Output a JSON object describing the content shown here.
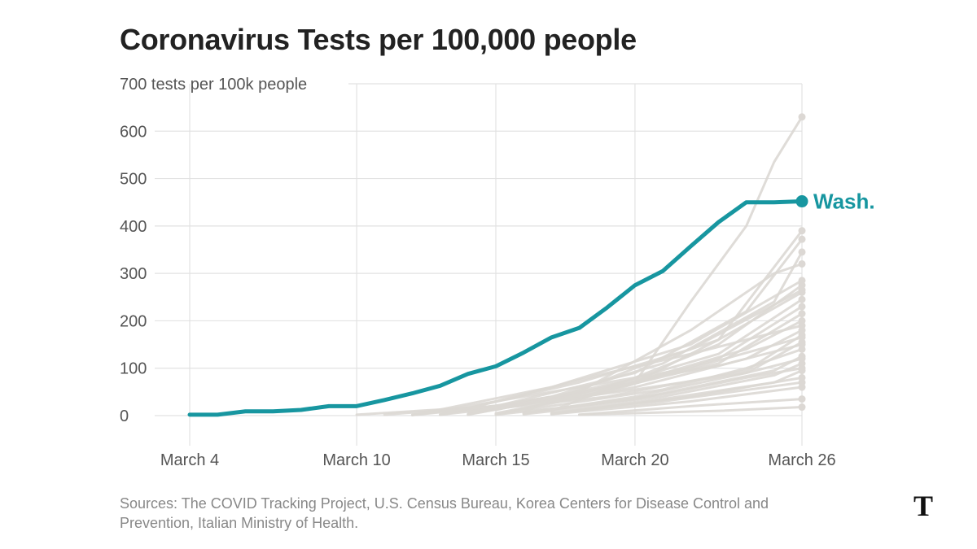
{
  "chart_data": {
    "type": "line",
    "title": "Coronavirus Tests per 100,000 people",
    "ylabel": "tests per 100k people",
    "ytick_labels": [
      "700 tests per 100k people",
      "600",
      "500",
      "400",
      "300",
      "200",
      "100",
      "0"
    ],
    "ylim": [
      0,
      700
    ],
    "x_day_range": [
      4,
      26
    ],
    "xtick_labels": [
      "March 4",
      "March 10",
      "March 15",
      "March 20",
      "March 26"
    ],
    "xticks": [
      4,
      10,
      15,
      20,
      26
    ],
    "grid": true,
    "highlight": {
      "name": "Wash.",
      "color": "#1796a0",
      "x": [
        4,
        5,
        6,
        7,
        8,
        9,
        10,
        11,
        12,
        13,
        14,
        15,
        16,
        17,
        18,
        19,
        20,
        21,
        22,
        23,
        24,
        25,
        26
      ],
      "values": [
        2,
        2,
        9,
        9,
        12,
        20,
        20,
        33,
        47,
        63,
        88,
        104,
        133,
        165,
        185,
        228,
        275,
        305,
        357,
        408,
        450,
        450,
        452
      ]
    },
    "background_series_color": "#dcd8d4",
    "background_series": [
      {
        "x": [
          10,
          15,
          20,
          22,
          24,
          25,
          26
        ],
        "values": [
          2,
          20,
          70,
          240,
          400,
          535,
          630
        ]
      },
      {
        "x": [
          12,
          16,
          20,
          23,
          26
        ],
        "values": [
          1,
          25,
          70,
          160,
          390
        ]
      },
      {
        "x": [
          11,
          15,
          20,
          24,
          26
        ],
        "values": [
          2,
          20,
          90,
          220,
          372
        ]
      },
      {
        "x": [
          13,
          17,
          21,
          25,
          26
        ],
        "values": [
          2,
          40,
          110,
          240,
          345
        ]
      },
      {
        "x": [
          14,
          18,
          22,
          25,
          26
        ],
        "values": [
          3,
          50,
          180,
          300,
          320
        ]
      },
      {
        "x": [
          12,
          17,
          22,
          26
        ],
        "values": [
          1,
          60,
          150,
          285
        ]
      },
      {
        "x": [
          13,
          18,
          22,
          26
        ],
        "values": [
          2,
          70,
          140,
          265
        ]
      },
      {
        "x": [
          14,
          18,
          23,
          26
        ],
        "values": [
          3,
          45,
          130,
          245
        ]
      },
      {
        "x": [
          15,
          19,
          23,
          26
        ],
        "values": [
          5,
          50,
          120,
          230
        ]
      },
      {
        "x": [
          12,
          18,
          23,
          26
        ],
        "values": [
          2,
          40,
          110,
          215
        ]
      },
      {
        "x": [
          14,
          19,
          24,
          26
        ],
        "values": [
          2,
          55,
          140,
          200
        ]
      },
      {
        "x": [
          15,
          20,
          24,
          26
        ],
        "values": [
          3,
          60,
          120,
          180
        ]
      },
      {
        "x": [
          13,
          19,
          24,
          26
        ],
        "values": [
          2,
          40,
          95,
          170
        ]
      },
      {
        "x": [
          16,
          20,
          24,
          26
        ],
        "values": [
          4,
          40,
          90,
          155
        ]
      },
      {
        "x": [
          15,
          21,
          24,
          26
        ],
        "values": [
          3,
          55,
          100,
          140
        ]
      },
      {
        "x": [
          16,
          20,
          25,
          26
        ],
        "values": [
          5,
          35,
          95,
          125
        ]
      },
      {
        "x": [
          15,
          21,
          25,
          26
        ],
        "values": [
          2,
          40,
          85,
          110
        ]
      },
      {
        "x": [
          16,
          21,
          25,
          26
        ],
        "values": [
          3,
          35,
          70,
          95
        ]
      },
      {
        "x": [
          17,
          22,
          26
        ],
        "values": [
          5,
          40,
          80
        ]
      },
      {
        "x": [
          17,
          22,
          26
        ],
        "values": [
          3,
          30,
          60
        ]
      },
      {
        "x": [
          18,
          22,
          26
        ],
        "values": [
          2,
          20,
          35
        ]
      },
      {
        "x": [
          18,
          23,
          26
        ],
        "values": [
          2,
          10,
          18
        ]
      },
      {
        "x": [
          16,
          20,
          23,
          26
        ],
        "values": [
          8,
          100,
          160,
          260
        ]
      },
      {
        "x": [
          17,
          20,
          23,
          26
        ],
        "values": [
          10,
          80,
          150,
          275
        ]
      },
      {
        "x": [
          14,
          19,
          22,
          26
        ],
        "values": [
          15,
          90,
          130,
          190
        ]
      },
      {
        "x": [
          13,
          18,
          22,
          26
        ],
        "values": [
          10,
          60,
          100,
          165
        ]
      },
      {
        "x": [
          15,
          19,
          23,
          26
        ],
        "values": [
          12,
          65,
          105,
          150
        ]
      },
      {
        "x": [
          14,
          20,
          24,
          26
        ],
        "values": [
          8,
          55,
          90,
          120
        ]
      },
      {
        "x": [
          16,
          21,
          24,
          26
        ],
        "values": [
          6,
          45,
          80,
          100
        ]
      },
      {
        "x": [
          17,
          21,
          26
        ],
        "values": [
          4,
          30,
          70
        ]
      }
    ]
  },
  "highlight_label": "Wash.",
  "sources": "Sources: The COVID Tracking Project, U.S. Census Bureau, Korea Centers for Disease Control and Prevention, Italian Ministry of Health.",
  "logo_icon": "nyt-logo-icon"
}
